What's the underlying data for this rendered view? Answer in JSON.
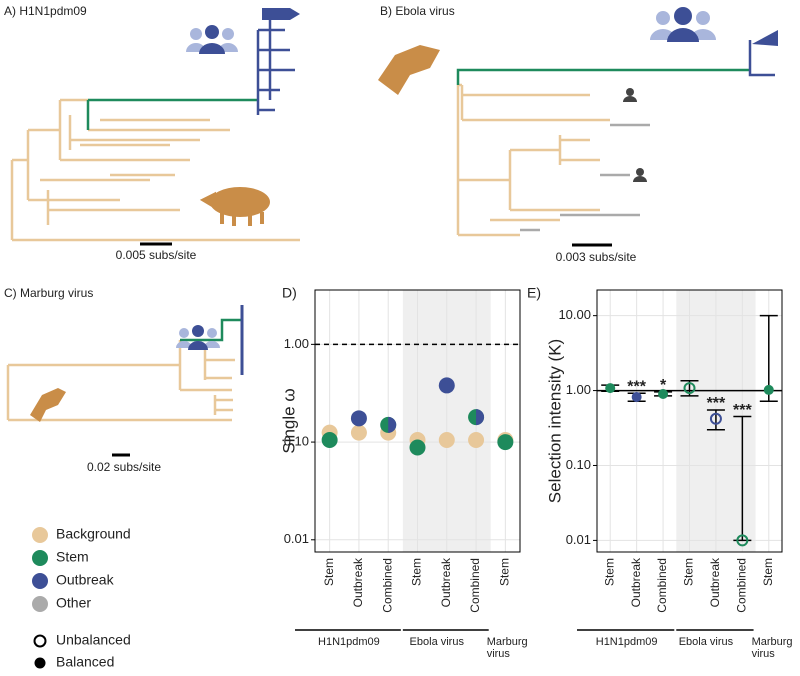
{
  "panels": {
    "a": {
      "title": "A) H1N1pdm09",
      "scale": "0.005 subs/site"
    },
    "b": {
      "title": "B) Ebola virus",
      "scale": "0.003 subs/site"
    },
    "c": {
      "title": "C) Marburg virus",
      "scale": "0.02 subs/site"
    }
  },
  "legend": {
    "colors": [
      "Background",
      "Stem",
      "Outbreak",
      "Other"
    ],
    "fill": [
      "Unbalanced",
      "Balanced"
    ]
  },
  "chart_data": [
    {
      "type": "dot",
      "title": "D)",
      "ylabel": "Single ω",
      "log": true,
      "categories": [
        "Stem",
        "Outbreak",
        "Combined",
        "Stem",
        "Outbreak",
        "Combined",
        "Stem"
      ],
      "group_labels": [
        "H1N1pdm09",
        "Ebola virus",
        "Marburg virus"
      ],
      "reference_line": 1,
      "series": [
        {
          "name": "Background",
          "color": "#e8c89a",
          "values": [
            0.125,
            0.125,
            0.125,
            0.105,
            0.105,
            0.105,
            0.105
          ]
        },
        {
          "name": "Stem",
          "color": "#1e8a5c",
          "values": [
            0.105,
            null,
            0.15,
            0.088,
            null,
            0.18,
            0.1
          ]
        },
        {
          "name": "Outbreak",
          "color": "#3d4f96",
          "values": [
            null,
            0.175,
            0.15,
            null,
            0.38,
            0.18,
            null
          ]
        }
      ],
      "ylim": [
        0.0075,
        3.6
      ],
      "yticks": [
        {
          "value": 1,
          "label": "1.00"
        },
        {
          "value": 0.1,
          "label": "0.10"
        },
        {
          "value": 0.01,
          "label": "0.01"
        }
      ]
    },
    {
      "type": "errorbar",
      "title": "E)",
      "ylabel": "Selection intensity (K)",
      "log": true,
      "categories": [
        "Stem",
        "Outbreak",
        "Combined",
        "Stem",
        "Outbreak",
        "Combined",
        "Stem"
      ],
      "group_labels": [
        "H1N1pdm09",
        "Ebola virus",
        "Marburg virus"
      ],
      "reference_line": 1,
      "values": [
        1.08,
        0.82,
        0.9,
        1.08,
        0.42,
        0.01,
        1.02
      ],
      "lower": [
        0.98,
        0.72,
        0.85,
        0.85,
        0.3,
        0.01,
        0.72
      ],
      "upper": [
        1.18,
        0.92,
        0.96,
        1.35,
        0.55,
        0.45,
        10
      ],
      "colors": [
        "#1e8a5c",
        "#3d4f96",
        "#1e8a5c",
        "#1e8a5c",
        "#3d4f96",
        "#1e8a5c",
        "#1e8a5c"
      ],
      "balanced": [
        true,
        true,
        true,
        false,
        false,
        false,
        true
      ],
      "labels": [
        null,
        "***",
        "*",
        null,
        "***",
        "***",
        null
      ],
      "ylim": [
        0.007,
        22
      ],
      "yticks": [
        {
          "value": 10,
          "label": "10.00"
        },
        {
          "value": 1,
          "label": "1.00"
        },
        {
          "value": 0.1,
          "label": "0.10"
        },
        {
          "value": 0.01,
          "label": "0.01"
        }
      ]
    }
  ]
}
